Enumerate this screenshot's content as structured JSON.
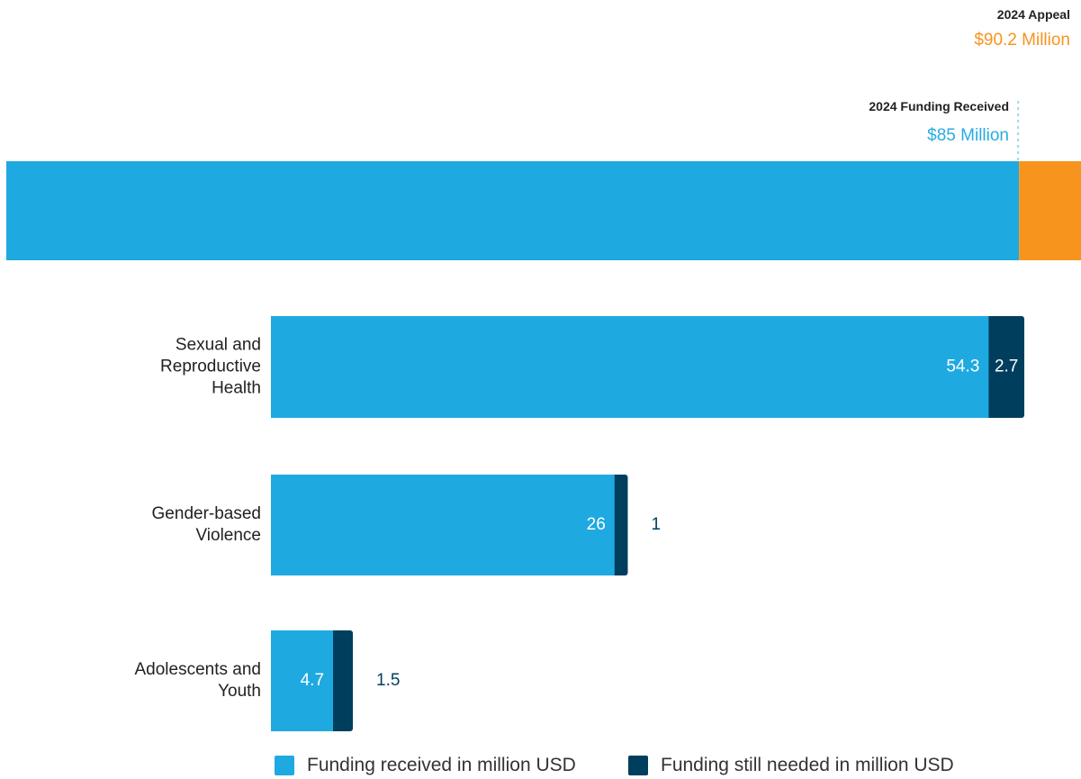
{
  "header": {
    "appeal_title": "2024 Appeal",
    "appeal_value": "$90.2 Million",
    "received_title": "2024 Funding Received",
    "received_value": "$85 Million"
  },
  "colors": {
    "received": "#1fa9e1",
    "needed": "#003e5e",
    "appeal": "#f7941d"
  },
  "chart_data": [
    {
      "type": "bar",
      "orientation": "horizontal",
      "stacked": true,
      "title": "",
      "categories": [
        "2024"
      ],
      "series": [
        {
          "name": "2024 Funding Received",
          "values": [
            85
          ]
        },
        {
          "name": "2024 Appeal",
          "values": [
            5.2
          ]
        }
      ],
      "xlim": [
        0,
        90.2
      ]
    },
    {
      "type": "bar",
      "orientation": "horizontal",
      "stacked": true,
      "categories": [
        "Sexual and Reproductive Health",
        "Gender-based Violence",
        "Adolescents and Youth"
      ],
      "category_lines": [
        [
          "Sexual and",
          "Reproductive",
          "Health"
        ],
        [
          "Gender-based",
          "Violence"
        ],
        [
          "Adolescents and",
          "Youth"
        ]
      ],
      "series": [
        {
          "name": "Funding received in million USD",
          "values": [
            54.3,
            26,
            4.7
          ]
        },
        {
          "name": "Funding still needed in million USD",
          "values": [
            2.7,
            1,
            1.5
          ]
        }
      ],
      "value_labels": {
        "received": [
          "54.3",
          "26",
          "4.7"
        ],
        "needed": [
          "2.7",
          "1",
          "1.5"
        ]
      },
      "xlim": [
        0,
        57
      ]
    }
  ],
  "legend": {
    "received": "Funding received in million USD",
    "needed": "Funding still needed in million USD"
  }
}
